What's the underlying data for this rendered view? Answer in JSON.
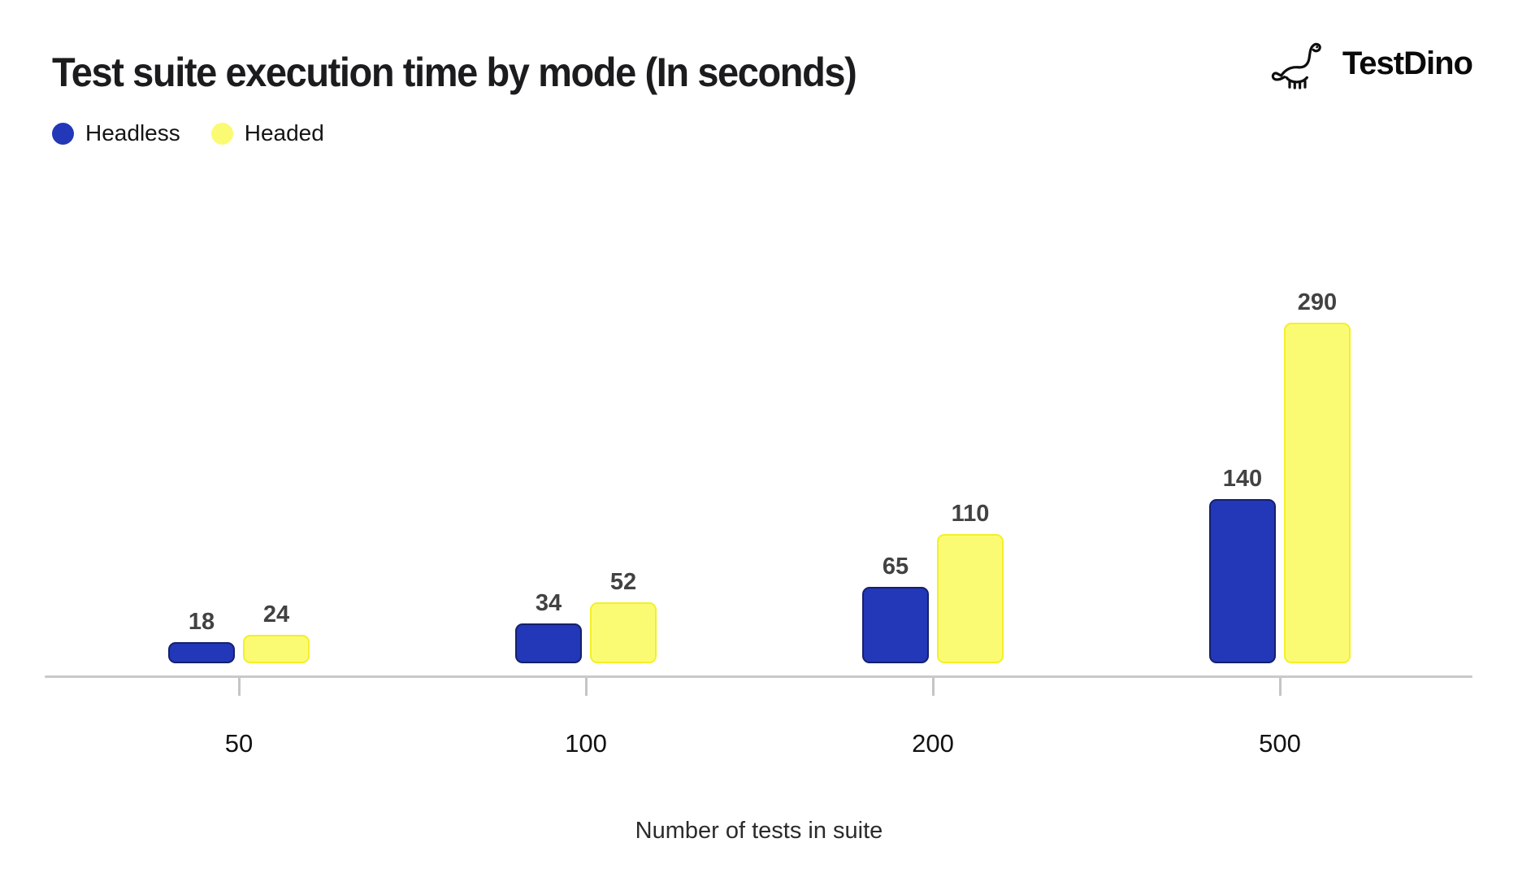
{
  "header": {
    "title": "Test suite execution time by mode (In seconds)",
    "logo": {
      "text": "TestDino",
      "icon": "dinosaur-icon"
    }
  },
  "legend": [
    {
      "label": "Headless",
      "color": "#2238b8"
    },
    {
      "label": "Headed",
      "color": "#fbfb73"
    }
  ],
  "chart_data": {
    "type": "bar",
    "title": "Test suite execution time by mode (In seconds)",
    "categories": [
      "50",
      "100",
      "200",
      "500"
    ],
    "series": [
      {
        "name": "Headless",
        "color": "#2238b8",
        "border_color": "#15206b",
        "values": [
          18,
          34,
          65,
          140
        ]
      },
      {
        "name": "Headed",
        "color": "#fbfb73",
        "border_color": "#f3f028",
        "values": [
          24,
          52,
          110,
          290
        ]
      }
    ],
    "xlabel": "Number of tests in suite",
    "ylabel": "",
    "unit": "seconds",
    "value_labels_shown": true,
    "grid": false,
    "legend_position": "top-left",
    "axis_color": "#c9c9c9",
    "background": "#ffffff"
  }
}
